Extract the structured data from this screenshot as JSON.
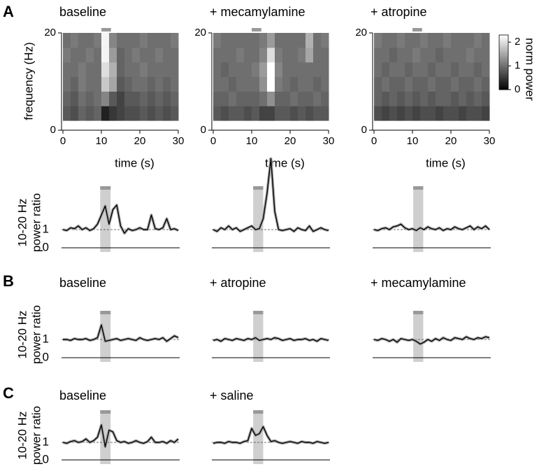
{
  "chart_data": [
    {
      "type": "heatmap",
      "title": "baseline",
      "panel": "A",
      "ylabel": "frequency (Hz)",
      "xlabel": "time (s)",
      "x": [
        0,
        2,
        4,
        6,
        8,
        10,
        12,
        14,
        16,
        18,
        20,
        22,
        24,
        26,
        28,
        30
      ],
      "y": [
        2,
        5,
        8,
        11,
        14,
        17,
        20
      ],
      "z": [
        [
          0.8,
          0.7,
          0.9,
          0.8,
          0.9,
          0.3,
          0.5,
          0.6,
          0.7,
          0.7,
          0.8,
          0.7,
          0.8,
          0.7,
          0.8
        ],
        [
          0.9,
          0.8,
          1.0,
          0.9,
          1.0,
          1.2,
          0.8,
          0.6,
          0.8,
          0.8,
          0.9,
          0.8,
          0.9,
          0.8,
          0.9
        ],
        [
          1.0,
          0.9,
          1.1,
          1.0,
          1.0,
          1.8,
          1.5,
          0.8,
          0.9,
          1.0,
          1.0,
          0.9,
          1.0,
          0.9,
          1.0
        ],
        [
          1.0,
          1.0,
          1.1,
          1.0,
          1.0,
          2.0,
          1.6,
          0.9,
          1.0,
          1.0,
          1.1,
          1.0,
          1.0,
          1.0,
          1.0
        ],
        [
          1.1,
          1.0,
          1.0,
          1.1,
          1.0,
          2.2,
          1.4,
          0.9,
          1.0,
          1.1,
          1.0,
          1.0,
          1.1,
          1.0,
          1.0
        ],
        [
          1.0,
          1.1,
          1.0,
          1.0,
          1.1,
          2.2,
          1.2,
          1.0,
          1.0,
          1.0,
          1.1,
          1.0,
          1.0,
          1.0,
          1.1
        ]
      ],
      "zlim": [
        0,
        2.3
      ],
      "xlim": [
        0,
        30
      ],
      "xticks": [
        0,
        10,
        20,
        30
      ],
      "ylim": [
        0,
        20
      ],
      "yticks": [
        0,
        20
      ],
      "stimulus": [
        10,
        12.5
      ]
    },
    {
      "type": "heatmap",
      "title": "+ mecamylamine",
      "xlabel": "time (s)",
      "x": [
        0,
        2,
        4,
        6,
        8,
        10,
        12,
        14,
        16,
        18,
        20,
        22,
        24,
        26,
        28,
        30
      ],
      "y": [
        2,
        5,
        8,
        11,
        14,
        17,
        20
      ],
      "z": [
        [
          0.8,
          0.7,
          0.8,
          0.8,
          0.7,
          0.8,
          0.6,
          0.6,
          0.8,
          0.8,
          0.7,
          0.8,
          0.7,
          0.8,
          0.8
        ],
        [
          0.9,
          0.9,
          1.0,
          0.9,
          0.9,
          0.9,
          1.0,
          1.3,
          0.9,
          0.9,
          1.0,
          0.9,
          0.9,
          1.0,
          0.9
        ],
        [
          1.0,
          1.0,
          0.9,
          1.0,
          1.0,
          1.0,
          1.3,
          2.3,
          1.1,
          1.0,
          0.9,
          1.0,
          1.0,
          0.9,
          1.0
        ],
        [
          1.0,
          0.9,
          1.0,
          1.0,
          1.0,
          1.1,
          1.4,
          2.3,
          1.2,
          1.0,
          1.0,
          1.0,
          1.0,
          1.0,
          1.0
        ],
        [
          1.0,
          1.0,
          1.0,
          1.1,
          1.0,
          1.0,
          1.2,
          2.0,
          1.1,
          1.0,
          1.0,
          1.1,
          1.5,
          1.0,
          1.0
        ],
        [
          1.1,
          1.0,
          1.0,
          1.0,
          1.0,
          1.0,
          1.1,
          1.4,
          1.0,
          1.0,
          1.0,
          1.0,
          1.6,
          1.0,
          1.1
        ]
      ],
      "zlim": [
        0,
        2.3
      ],
      "xlim": [
        0,
        30
      ],
      "xticks": [
        0,
        10,
        20,
        30
      ],
      "ylim": [
        0,
        20
      ],
      "yticks": [
        0,
        20
      ],
      "stimulus": [
        10,
        12.5
      ]
    },
    {
      "type": "heatmap",
      "title": "+ atropine",
      "xlabel": "time (s)",
      "x": [
        0,
        2,
        4,
        6,
        8,
        10,
        12,
        14,
        16,
        18,
        20,
        22,
        24,
        26,
        28,
        30
      ],
      "y": [
        2,
        5,
        8,
        11,
        14,
        17,
        20
      ],
      "z": [
        [
          0.7,
          0.6,
          0.7,
          0.6,
          0.7,
          0.6,
          0.7,
          0.7,
          0.6,
          0.7,
          0.7,
          0.6,
          0.7,
          0.7,
          0.6
        ],
        [
          0.9,
          0.8,
          0.9,
          0.8,
          0.9,
          0.8,
          0.9,
          0.8,
          0.9,
          0.9,
          0.8,
          0.9,
          0.8,
          0.9,
          0.8
        ],
        [
          0.9,
          1.0,
          0.9,
          0.9,
          1.0,
          0.9,
          0.9,
          1.0,
          0.9,
          0.9,
          1.0,
          0.9,
          0.9,
          1.0,
          0.9
        ],
        [
          1.0,
          0.9,
          1.0,
          1.0,
          0.9,
          1.0,
          1.0,
          0.9,
          1.0,
          1.0,
          0.9,
          1.0,
          1.0,
          0.9,
          1.0
        ],
        [
          1.0,
          1.0,
          0.9,
          1.0,
          1.0,
          1.1,
          1.0,
          1.0,
          0.9,
          1.0,
          1.0,
          1.0,
          1.1,
          1.0,
          1.0
        ],
        [
          1.1,
          1.0,
          1.0,
          1.1,
          1.0,
          1.0,
          1.1,
          1.0,
          1.0,
          1.1,
          1.0,
          1.0,
          1.0,
          1.1,
          1.0
        ]
      ],
      "zlim": [
        0,
        2.3
      ],
      "xlim": [
        0,
        30
      ],
      "xticks": [
        0,
        10,
        20,
        30
      ],
      "ylim": [
        0,
        20
      ],
      "yticks": [
        0,
        20
      ],
      "stimulus": [
        10,
        12.5
      ],
      "colorbar": {
        "label": "norm power",
        "ticks": [
          0,
          1,
          2
        ]
      }
    },
    {
      "type": "line",
      "ylabel": [
        "10-20 Hz",
        "power ratio"
      ],
      "color": "#000000",
      "tick_labels": true,
      "x": [
        0,
        1,
        2,
        3,
        4,
        5,
        6,
        7,
        8,
        9,
        10,
        11,
        12,
        13,
        14,
        15,
        16,
        17,
        18,
        19,
        20,
        21,
        22,
        23,
        24,
        25,
        26,
        27,
        28,
        29,
        30
      ],
      "values": [
        1.0,
        0.95,
        1.1,
        1.05,
        1.2,
        1.0,
        1.1,
        0.95,
        1.05,
        1.3,
        1.8,
        2.3,
        1.3,
        2.1,
        2.35,
        1.2,
        0.8,
        1.05,
        0.95,
        1.0,
        1.1,
        1.0,
        1.0,
        1.8,
        1.05,
        1.0,
        1.1,
        1.6,
        1.0,
        1.05,
        0.95
      ],
      "xlim": [
        0,
        30
      ],
      "ylim": [
        0,
        5
      ],
      "yticks": [
        0,
        1
      ],
      "stimulus": [
        9.7,
        12.4
      ]
    },
    {
      "type": "line",
      "color": "#000000",
      "tick_labels": false,
      "x": [
        0,
        1,
        2,
        3,
        4,
        5,
        6,
        7,
        8,
        9,
        10,
        11,
        12,
        13,
        14,
        15,
        16,
        17,
        18,
        19,
        20,
        21,
        22,
        23,
        24,
        25,
        26,
        27,
        28,
        29,
        30
      ],
      "values": [
        1.0,
        0.9,
        1.1,
        1.0,
        1.2,
        1.0,
        1.1,
        0.9,
        1.0,
        1.1,
        1.2,
        1.0,
        1.05,
        1.6,
        3.0,
        4.9,
        2.0,
        1.0,
        0.95,
        1.0,
        1.05,
        0.9,
        1.1,
        1.0,
        0.95,
        1.2,
        0.9,
        1.0,
        1.1,
        1.0,
        0.95
      ],
      "xlim": [
        0,
        30
      ],
      "ylim": [
        0,
        5
      ],
      "yticks": [
        0,
        1
      ],
      "stimulus": [
        10.4,
        13
      ]
    },
    {
      "type": "line",
      "color": "#000000",
      "tick_labels": false,
      "x": [
        0,
        1,
        2,
        3,
        4,
        5,
        6,
        7,
        8,
        9,
        10,
        11,
        12,
        13,
        14,
        15,
        16,
        17,
        18,
        19,
        20,
        21,
        22,
        23,
        24,
        25,
        26,
        27,
        28,
        29,
        30
      ],
      "values": [
        1.0,
        0.95,
        1.05,
        1.1,
        1.0,
        1.15,
        1.2,
        1.3,
        1.1,
        1.0,
        1.05,
        0.95,
        1.1,
        1.0,
        1.15,
        1.05,
        1.0,
        1.1,
        0.95,
        1.05,
        1.0,
        1.15,
        1.05,
        1.0,
        1.1,
        1.2,
        1.0,
        1.15,
        1.05,
        1.2,
        1.0
      ],
      "xlim": [
        0,
        30
      ],
      "ylim": [
        0,
        5
      ],
      "yticks": [
        0,
        1
      ],
      "stimulus": [
        10.2,
        12.8
      ]
    },
    {
      "type": "line",
      "title": "baseline",
      "panel": "B",
      "ylabel": [
        "10-20 Hz",
        "power ratio"
      ],
      "color": "#000000",
      "tick_labels": true,
      "x": [
        0,
        1,
        2,
        3,
        4,
        5,
        6,
        7,
        8,
        9,
        10,
        11,
        12,
        13,
        14,
        15,
        16,
        17,
        18,
        19,
        20,
        21,
        22,
        23,
        24,
        25,
        26,
        27,
        28,
        29,
        30
      ],
      "values": [
        1.0,
        1.0,
        0.95,
        1.05,
        1.0,
        1.0,
        1.05,
        0.95,
        1.0,
        1.1,
        1.8,
        0.9,
        0.95,
        1.0,
        1.05,
        0.95,
        1.0,
        1.05,
        1.0,
        0.95,
        1.1,
        1.0,
        0.95,
        1.0,
        1.05,
        1.0,
        1.1,
        0.9,
        1.05,
        1.2,
        1.1
      ],
      "xlim": [
        0,
        30
      ],
      "ylim": [
        0,
        2
      ],
      "yticks": [
        0,
        1
      ],
      "stimulus": [
        9.7,
        12.4
      ]
    },
    {
      "type": "line",
      "title": "+ atropine",
      "color": "#000000",
      "tick_labels": false,
      "x": [
        0,
        1,
        2,
        3,
        4,
        5,
        6,
        7,
        8,
        9,
        10,
        11,
        12,
        13,
        14,
        15,
        16,
        17,
        18,
        19,
        20,
        21,
        22,
        23,
        24,
        25,
        26,
        27,
        28,
        29,
        30
      ],
      "values": [
        0.95,
        1.0,
        0.9,
        1.05,
        1.0,
        0.95,
        1.05,
        1.0,
        0.95,
        1.05,
        1.0,
        1.1,
        0.95,
        1.0,
        1.05,
        1.0,
        1.1,
        1.05,
        0.95,
        1.0,
        1.05,
        0.95,
        1.0,
        1.0,
        1.05,
        0.95,
        1.0,
        0.9,
        1.05,
        1.0,
        0.95
      ],
      "xlim": [
        0,
        30
      ],
      "ylim": [
        0,
        2
      ],
      "yticks": [
        0,
        1
      ],
      "stimulus": [
        10.4,
        13
      ]
    },
    {
      "type": "line",
      "title": "+ mecamylamine",
      "color": "#000000",
      "tick_labels": false,
      "x": [
        0,
        1,
        2,
        3,
        4,
        5,
        6,
        7,
        8,
        9,
        10,
        11,
        12,
        13,
        14,
        15,
        16,
        17,
        18,
        19,
        20,
        21,
        22,
        23,
        24,
        25,
        26,
        27,
        28,
        29,
        30
      ],
      "values": [
        1.0,
        0.95,
        1.05,
        1.0,
        0.9,
        1.0,
        0.85,
        1.05,
        1.0,
        0.95,
        1.0,
        0.9,
        0.75,
        0.85,
        1.0,
        0.9,
        1.05,
        0.95,
        1.1,
        1.0,
        0.95,
        1.1,
        1.05,
        1.0,
        1.15,
        1.05,
        1.0,
        1.1,
        1.05,
        1.15,
        1.1
      ],
      "xlim": [
        0,
        30
      ],
      "ylim": [
        0,
        2
      ],
      "yticks": [
        0,
        1
      ],
      "stimulus": [
        10.2,
        12.8
      ]
    },
    {
      "type": "line",
      "title": "baseline",
      "panel": "C",
      "ylabel": [
        "10-20 Hz",
        "power ratio"
      ],
      "color": "#000000",
      "tick_labels": true,
      "x": [
        0,
        1,
        2,
        3,
        4,
        5,
        6,
        7,
        8,
        9,
        10,
        11,
        12,
        13,
        14,
        15,
        16,
        17,
        18,
        19,
        20,
        21,
        22,
        23,
        24,
        25,
        26,
        27,
        28,
        29,
        30
      ],
      "values": [
        1.0,
        0.95,
        1.05,
        1.1,
        1.0,
        1.05,
        1.2,
        1.0,
        1.1,
        1.3,
        2.0,
        0.75,
        1.7,
        1.6,
        1.1,
        1.0,
        1.05,
        0.95,
        1.0,
        1.1,
        1.0,
        0.95,
        1.05,
        1.3,
        1.0,
        1.0,
        1.05,
        0.95,
        1.1,
        1.0,
        1.2
      ],
      "xlim": [
        0,
        30
      ],
      "ylim": [
        0,
        2
      ],
      "yticks": [
        0,
        1
      ],
      "stimulus": [
        9.7,
        12.4
      ]
    },
    {
      "type": "line",
      "title": "+ saline",
      "color": "#000000",
      "tick_labels": false,
      "x": [
        0,
        1,
        2,
        3,
        4,
        5,
        6,
        7,
        8,
        9,
        10,
        11,
        12,
        13,
        14,
        15,
        16,
        17,
        18,
        19,
        20,
        21,
        22,
        23,
        24,
        25,
        26,
        27,
        28,
        29,
        30
      ],
      "values": [
        0.95,
        1.0,
        1.0,
        0.95,
        1.05,
        1.0,
        1.0,
        0.95,
        1.05,
        1.1,
        1.8,
        1.4,
        1.5,
        1.9,
        1.4,
        1.05,
        1.1,
        1.0,
        0.95,
        1.0,
        1.05,
        1.0,
        0.95,
        1.05,
        1.0,
        1.0,
        0.95,
        1.05,
        1.0,
        0.95,
        1.0
      ],
      "xlim": [
        0,
        30
      ],
      "ylim": [
        0,
        2
      ],
      "yticks": [
        0,
        1
      ],
      "stimulus": [
        10.4,
        13
      ]
    }
  ]
}
